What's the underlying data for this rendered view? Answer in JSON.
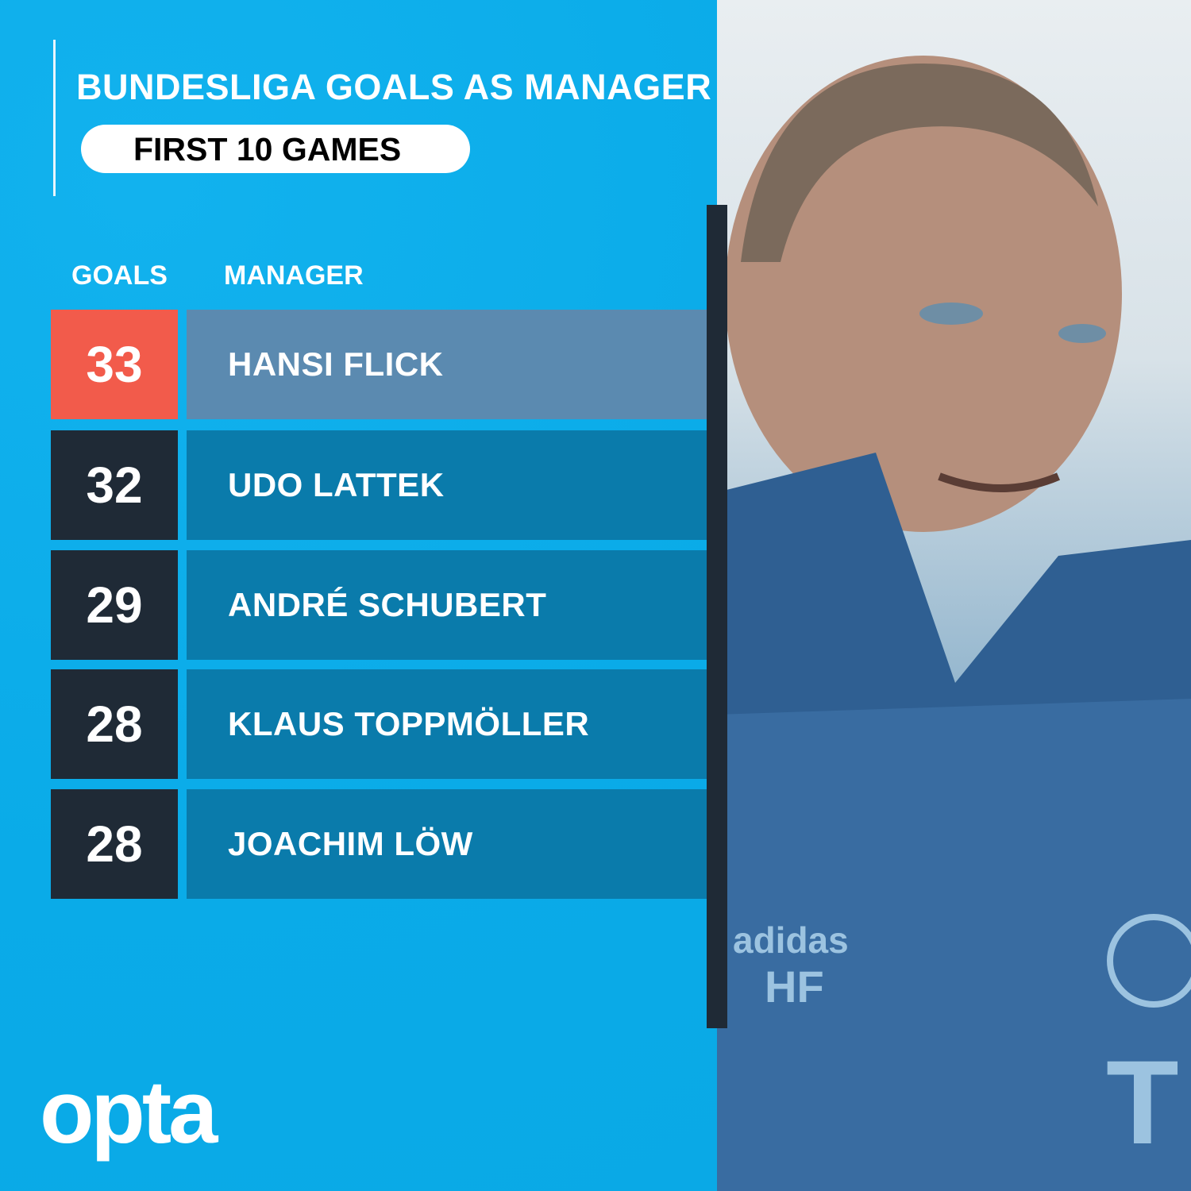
{
  "title": "BUNDESLIGA GOALS AS MANAGER",
  "subtitle": "FIRST 10 GAMES",
  "columns": {
    "goals": "GOALS",
    "manager": "MANAGER"
  },
  "rows": [
    {
      "goals": "33",
      "manager": "HANSI FLICK",
      "highlight": true
    },
    {
      "goals": "32",
      "manager": "UDO LATTEK"
    },
    {
      "goals": "29",
      "manager": "ANDRÉ SCHUBERT"
    },
    {
      "goals": "28",
      "manager": "KLAUS TOPPMÖLLER"
    },
    {
      "goals": "28",
      "manager": "JOACHIM LÖW"
    }
  ],
  "logo": "opta",
  "photo": {
    "jacket_text": "HF",
    "brand": "adidas"
  },
  "colors": {
    "background": "#0cadea",
    "highlight_goal": "#f25b4b",
    "highlight_row": "#5b8ab0",
    "row": "#0a7bab",
    "dark": "#1f2a36"
  }
}
